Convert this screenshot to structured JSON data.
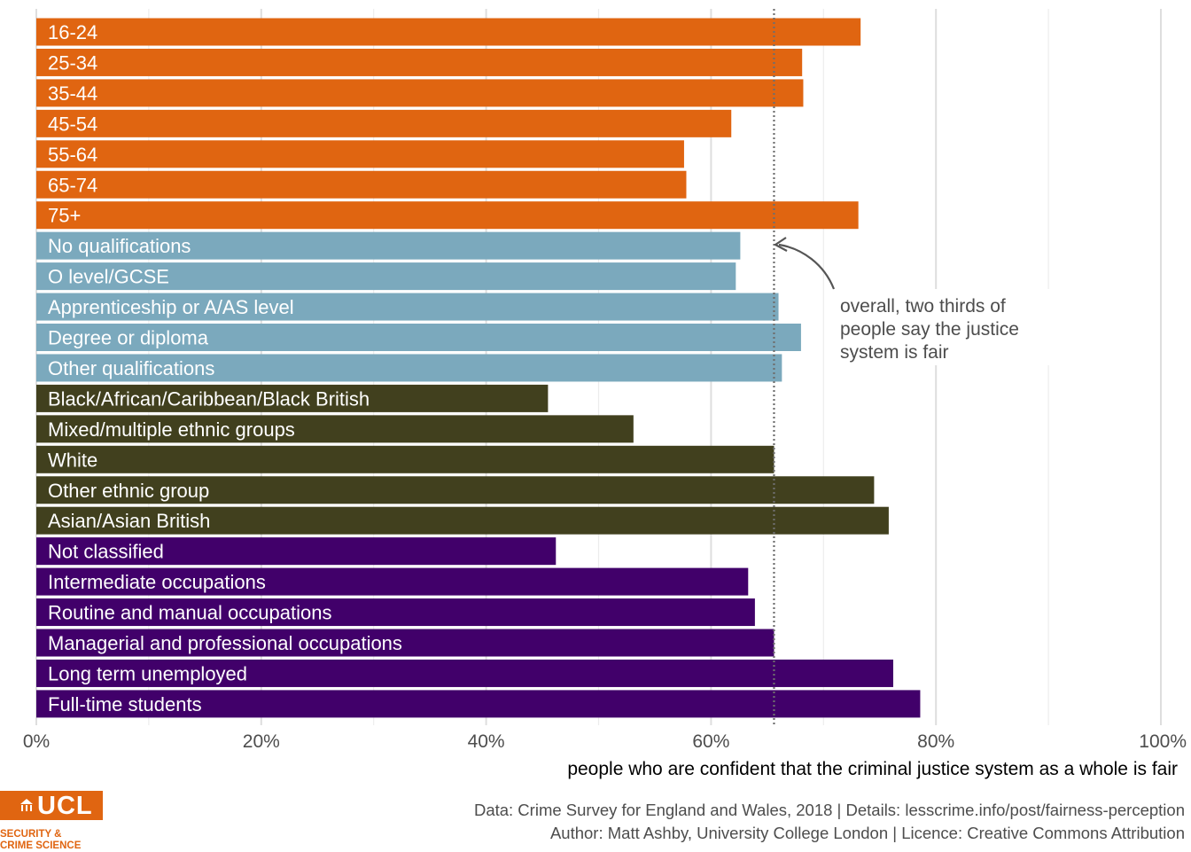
{
  "chart_data": {
    "type": "bar",
    "orientation": "horizontal",
    "categories": [
      "16-24",
      "25-34",
      "35-44",
      "45-54",
      "55-64",
      "65-74",
      "75+",
      "No qualifications",
      "O level/GCSE",
      "Apprenticeship or A/AS level",
      "Degree or diploma",
      "Other qualifications",
      "Black/African/Caribbean/Black British",
      "Mixed/multiple ethnic groups",
      "White",
      "Other ethnic group",
      "Asian/Asian British",
      "Not classified",
      "Intermediate occupations",
      "Routine and manual occupations",
      "Managerial and professional occupations",
      "Long term unemployed",
      "Full-time students"
    ],
    "values": [
      73.3,
      68.1,
      68.2,
      61.8,
      57.6,
      57.8,
      73.1,
      62.6,
      62.2,
      66.0,
      68.0,
      66.3,
      45.5,
      53.1,
      65.6,
      74.5,
      75.8,
      46.2,
      63.3,
      63.9,
      65.6,
      76.2,
      78.6
    ],
    "group_colors": [
      "#e06511",
      "#e06511",
      "#e06511",
      "#e06511",
      "#e06511",
      "#e06511",
      "#e06511",
      "#7ba9bd",
      "#7ba9bd",
      "#7ba9bd",
      "#7ba9bd",
      "#7ba9bd",
      "#41401e",
      "#41401e",
      "#41401e",
      "#41401e",
      "#41401e",
      "#41006a",
      "#41006a",
      "#41006a",
      "#41006a",
      "#41006a",
      "#41006a"
    ],
    "xlim": [
      0,
      100
    ],
    "xticks": [
      0,
      20,
      40,
      60,
      80,
      100
    ],
    "xtick_labels": [
      "0%",
      "20%",
      "40%",
      "60%",
      "80%",
      "100%"
    ],
    "xlabel": "people who are confident that the criminal justice system as a whole is fair",
    "reference_line": 65.6,
    "annotation": {
      "lines": [
        "overall, two thirds of",
        "people say the justice",
        "system is fair"
      ]
    },
    "grid": true
  },
  "footer": {
    "data_line": "Data: Crime Survey for England and Wales, 2018 |  Details: lesscrime.info/post/fairness-perception",
    "author_line": "Author: Matt Ashby, University College London |  Licence: Creative Commons Attribution"
  },
  "logo": {
    "wordmark": "UCL",
    "sub_line_1": "SECURITY &",
    "sub_line_2": "CRIME SCIENCE",
    "color": "#e06511"
  }
}
